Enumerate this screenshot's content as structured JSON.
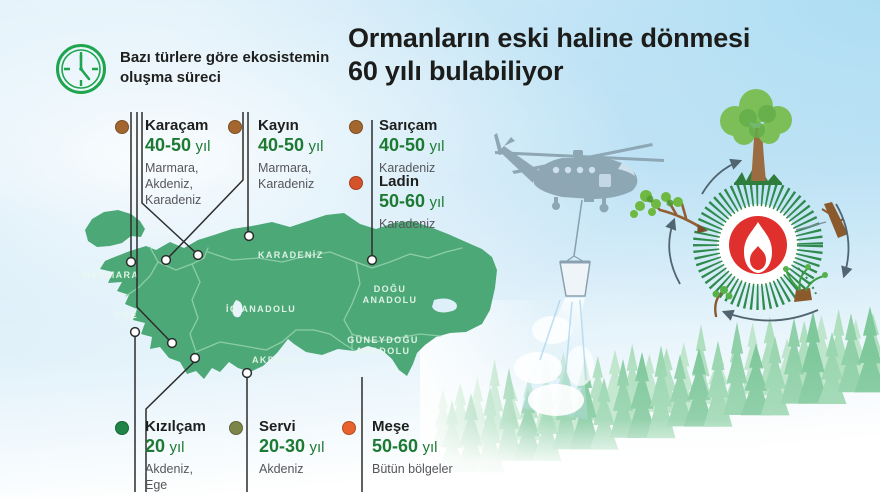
{
  "intro": {
    "icon": "clock-icon",
    "line1": "Bazı türlere göre ekosistemin",
    "line2": "oluşma süreci"
  },
  "title": {
    "line1": "Ormanların eski haline dönmesi",
    "line2": "60 yılı bulabiliyor"
  },
  "species": [
    {
      "name": "Karaçam",
      "duration": "40-50",
      "unit": "yıl",
      "regions": [
        "Marmara,",
        "Akdeniz,",
        "Karadeniz"
      ],
      "color": "#a2662e"
    },
    {
      "name": "Kayın",
      "duration": "40-50",
      "unit": "yıl",
      "regions": [
        "Marmara,",
        "Karadeniz"
      ],
      "color": "#a2662e"
    },
    {
      "name": "Sarıçam",
      "duration": "40-50",
      "unit": "yıl",
      "regions": [
        "Karadeniz"
      ],
      "color": "#a2662e"
    },
    {
      "name": "Ladin",
      "duration": "50-60",
      "unit": "yıl",
      "regions": [
        "Karadeniz"
      ],
      "color": "#d4532b"
    },
    {
      "name": "Kızılçam",
      "duration": "20",
      "unit": "yıl",
      "regions": [
        "Akdeniz,",
        "Ege"
      ],
      "color": "#1f8446"
    },
    {
      "name": "Servi",
      "duration": "20-30",
      "unit": "yıl",
      "regions": [
        "Akdeniz"
      ],
      "color": "#7d8548"
    },
    {
      "name": "Meşe",
      "duration": "50-60",
      "unit": "yıl",
      "regions": [
        "Bütün bölgeler"
      ],
      "color": "#e8622d"
    }
  ],
  "map": {
    "region_lines": [
      "MARMARA",
      "EGE",
      "KARADENİZ",
      "İÇ ANADOLU",
      "DOĞU",
      "ANADOLU",
      "GÜNEYDOĞU",
      "ANADOLU",
      "AKDENİZ"
    ]
  },
  "colors": {
    "map_green": "#4da877",
    "year_green": "#1d7a33",
    "connector": "#2c2c2c",
    "fire_red": "#e0302e",
    "sunburst_green": "#2f8a4e",
    "forest_green": "#8fd0a8",
    "sky_blue": "#aeddf3",
    "clock_green": "#1ea54e"
  }
}
